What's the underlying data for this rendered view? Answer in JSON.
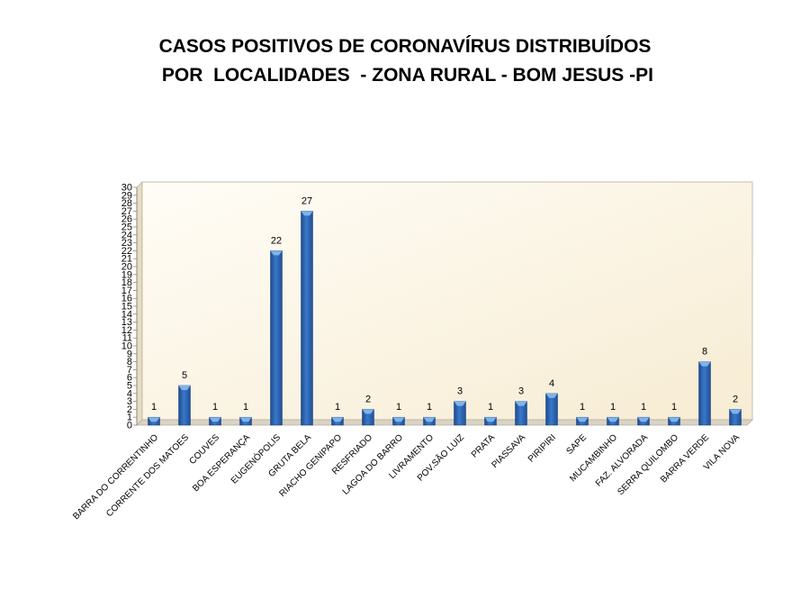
{
  "title_line1": "CASOS POSITIVOS DE CORONAVÍRUS DISTRIBUÍDOS",
  "title_line2": " POR  LOCALIDADES  - ZONA RURAL - BOM JESUS -PI",
  "chart_data": {
    "type": "bar",
    "title": "CASOS POSITIVOS DE CORONAVÍRUS DISTRIBUÍDOS POR LOCALIDADES - ZONA RURAL - BOM JESUS -PI",
    "categories": [
      "BARRA DO CORRENTINHO",
      "CORRENTE DOS MATOES",
      "COUVES",
      "BOA ESPERANÇA",
      "EUGENÓPOLIS",
      "GRUTA BELA",
      "RIACHO GENIPAPO",
      "RESFRIADO",
      "LAGOA DO BARRO",
      "LIVRAMENTO",
      "POV.SÃO LUIZ",
      "PRATA",
      "PIASSAVA",
      "PIRIPIRI",
      "SAPE",
      "MUCAMBINHO",
      "FAZ. ALVORADA",
      "SERRA QUILOMBO",
      "BARRA VERDE",
      "VILA NOVA"
    ],
    "values": [
      1,
      5,
      1,
      1,
      22,
      27,
      1,
      2,
      1,
      1,
      3,
      1,
      3,
      4,
      1,
      1,
      1,
      1,
      8,
      2
    ],
    "ylim": [
      0,
      30
    ],
    "ytick_step": 1,
    "grid": false,
    "legend": "none",
    "colors": {
      "bar": "#2f62b0",
      "bar_top": "#7fb4ea",
      "plot_bg": "#fdf6e4"
    }
  }
}
